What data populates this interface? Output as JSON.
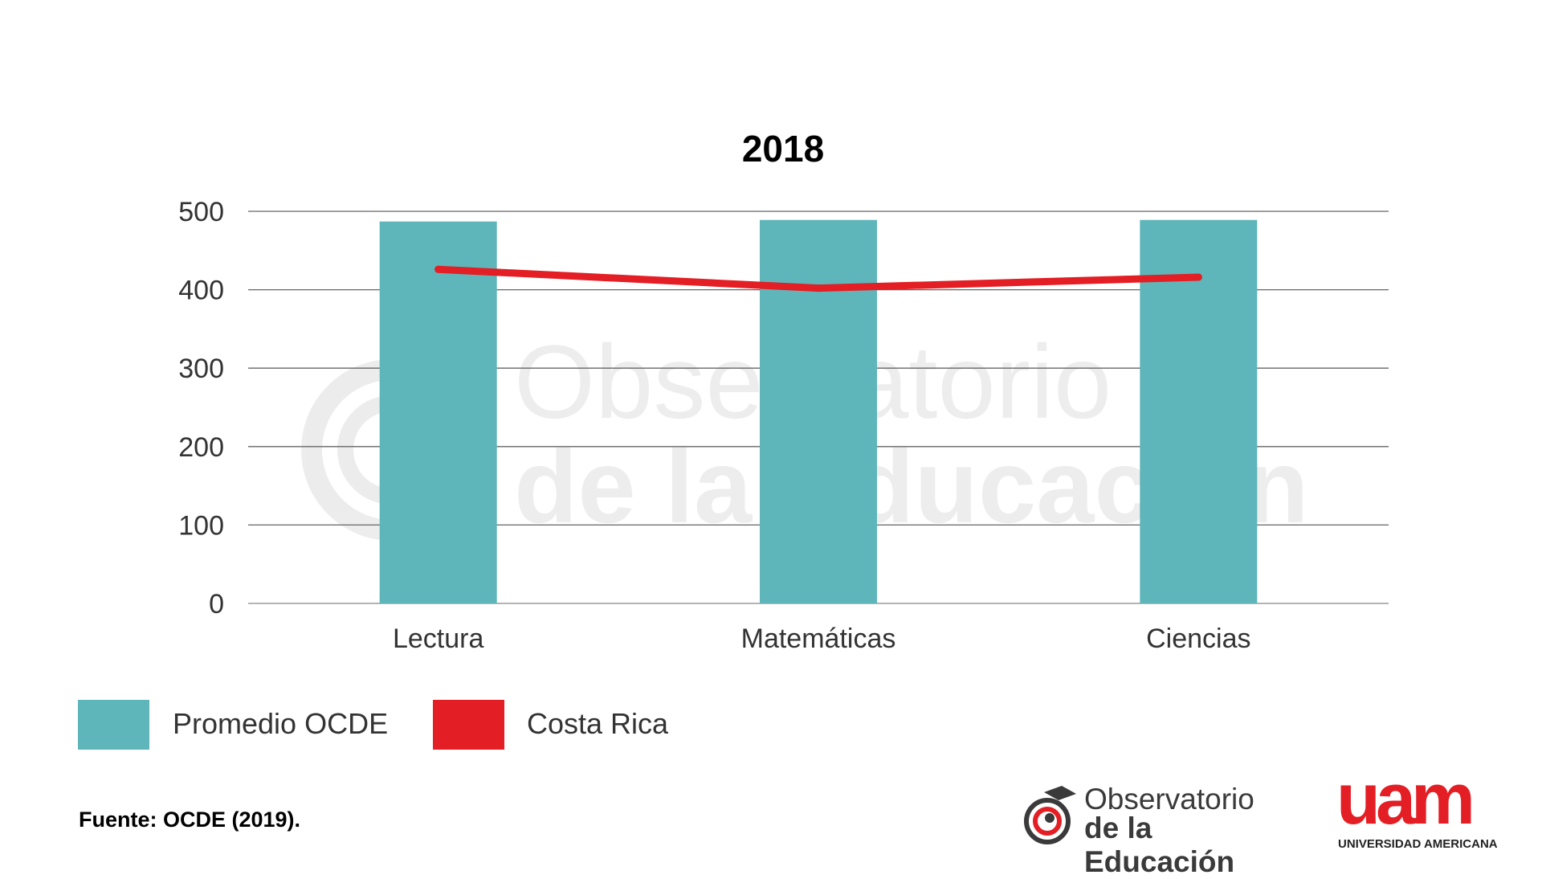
{
  "chart_data": {
    "type": "bar",
    "title": "2018",
    "categories": [
      "Lectura",
      "Matemáticas",
      "Ciencias"
    ],
    "series": [
      {
        "name": "Promedio OCDE",
        "type": "bar",
        "color": "#5EB6BA",
        "values": [
          487,
          489,
          489
        ]
      },
      {
        "name": "Costa Rica",
        "type": "line",
        "color": "#E31E24",
        "values": [
          426,
          402,
          416
        ]
      }
    ],
    "ylim": [
      0,
      500
    ],
    "yticks": [
      "0",
      "100",
      "200",
      "300",
      "400",
      "500"
    ],
    "grid": true,
    "legend_position": "bottom-left",
    "xlabel": "",
    "ylabel": ""
  },
  "legend": [
    "Promedio OCDE",
    "Costa Rica"
  ],
  "source": "Fuente: OCDE (2019).",
  "logos": {
    "observatorio_line1": "Observatorio",
    "observatorio_line2": "de la Educación",
    "uam_word": "uam",
    "uam_sub": "UNIVERSIDAD AMERICANA"
  }
}
